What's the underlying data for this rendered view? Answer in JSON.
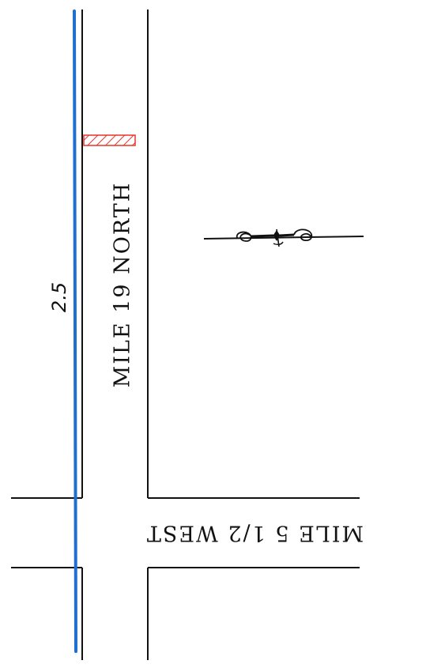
{
  "map": {
    "road_north_label": "MILE 19 NORTH",
    "road_west_label": "MILE 5 1/2 WEST",
    "distance_label": "2.5",
    "route_color": "#1f6fd1",
    "marker_color": "#e8332b",
    "marker_icon": "hatched-rectangle",
    "north_arrow_icon": "compass-arrow"
  }
}
